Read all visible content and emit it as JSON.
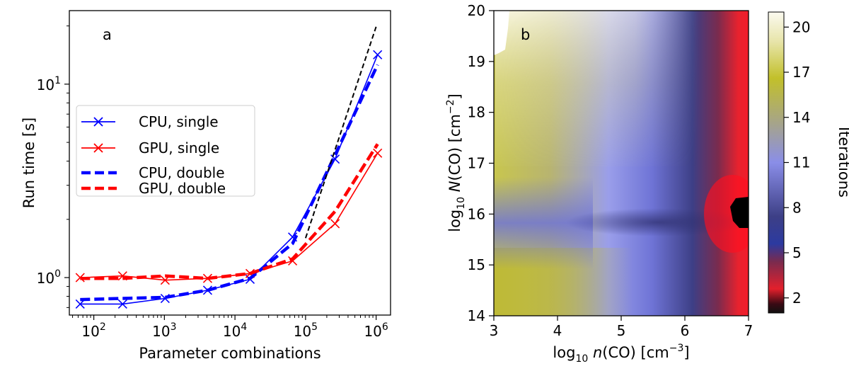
{
  "chart_data": [
    {
      "type": "line",
      "panel_label": "a",
      "xlabel": "Parameter combinations",
      "ylabel": "Run time [s]",
      "xscale": "log",
      "yscale": "log",
      "xlim": [
        45,
        1600000
      ],
      "ylim": [
        0.64,
        24
      ],
      "xticks": [
        100,
        1000,
        10000,
        100000,
        1000000
      ],
      "xtick_labels": [
        {
          "base": "10",
          "exp": "2"
        },
        {
          "base": "10",
          "exp": "3"
        },
        {
          "base": "10",
          "exp": "4"
        },
        {
          "base": "10",
          "exp": "5"
        },
        {
          "base": "10",
          "exp": "6"
        }
      ],
      "yticks": [
        1,
        10
      ],
      "ytick_labels": [
        {
          "base": "10",
          "exp": "0"
        },
        {
          "base": "10",
          "exp": "1"
        }
      ],
      "legend_position": "center-left",
      "grid": false,
      "series": [
        {
          "name": "CPU, single",
          "color": "#0000ff",
          "style": "solid-x",
          "x": [
            64,
            256,
            1024,
            4096,
            16384,
            65536,
            262144,
            1048576
          ],
          "y": [
            0.73,
            0.73,
            0.78,
            0.86,
            0.98,
            1.62,
            4.1,
            14.2
          ]
        },
        {
          "name": "GPU, single",
          "color": "#ff0000",
          "style": "solid-x",
          "x": [
            64,
            256,
            1024,
            4096,
            16384,
            65536,
            262144,
            1048576
          ],
          "y": [
            1.0,
            1.02,
            0.97,
            0.99,
            1.05,
            1.22,
            1.9,
            4.4
          ]
        },
        {
          "name": "CPU, double",
          "color": "#0000ff",
          "style": "dashed",
          "x": [
            64,
            256,
            1024,
            4096,
            16384,
            65536,
            262144,
            1048576
          ],
          "y": [
            0.77,
            0.78,
            0.79,
            0.86,
            0.99,
            1.5,
            4.3,
            12.6
          ]
        },
        {
          "name": "GPU, double",
          "color": "#ff0000",
          "style": "dashed",
          "x": [
            64,
            256,
            1024,
            4096,
            16384,
            65536,
            262144,
            1048576
          ],
          "y": [
            0.99,
            0.99,
            1.02,
            0.99,
            1.05,
            1.25,
            2.2,
            4.9
          ]
        },
        {
          "name": "",
          "color": "#000000",
          "style": "dashed-thin",
          "x": [
            100000,
            1000000
          ],
          "y": [
            1.6,
            19.8
          ]
        }
      ]
    },
    {
      "type": "heatmap",
      "panel_label": "b",
      "xlabel": {
        "pre": "log",
        "sub": "10",
        "mid": " n",
        "post": "(CO) [cm",
        "sup": "−3",
        "end": "]"
      },
      "ylabel": {
        "pre": "log",
        "sub": "10",
        "mid": " N",
        "post": "(CO) [cm",
        "sup": "−2",
        "end": "]"
      },
      "xlim": [
        3,
        7
      ],
      "ylim": [
        14,
        20
      ],
      "xticks": [
        "3",
        "4",
        "5",
        "6",
        "7"
      ],
      "yticks": [
        "14",
        "15",
        "16",
        "17",
        "18",
        "19",
        "20"
      ],
      "colorbar": {
        "label": "Iterations",
        "range": [
          1,
          21
        ],
        "ticks": [
          "2",
          "5",
          "8",
          "11",
          "14",
          "17",
          "20"
        ]
      },
      "description_values": {
        "min_iterations_region": "log n(CO)≈6.8–7, log N(CO)≈15.7–16.1",
        "max_iterations_region": "log n(CO)≈3, log N(CO)≈19–20"
      }
    }
  ]
}
